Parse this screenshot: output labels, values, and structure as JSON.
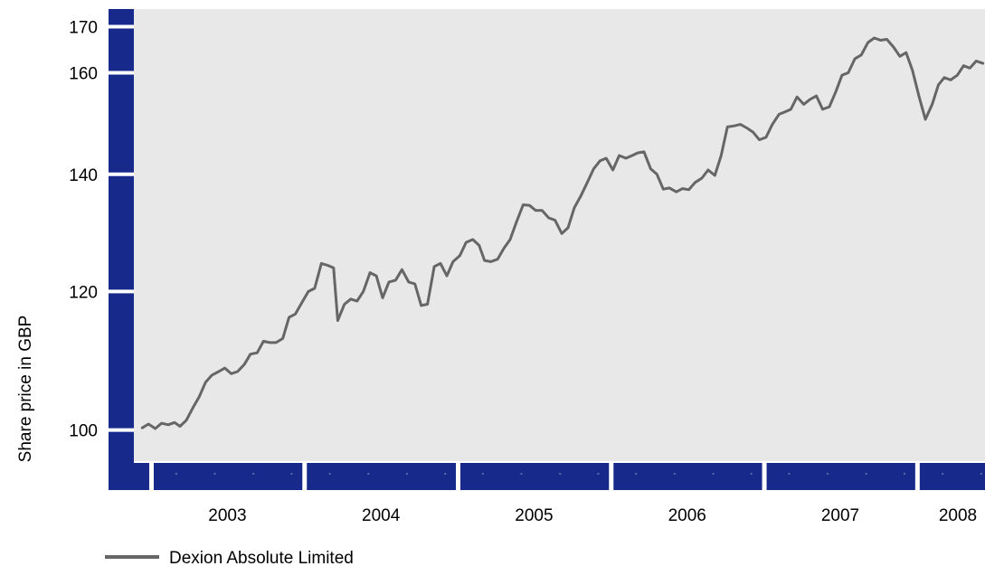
{
  "chart_data": {
    "type": "line",
    "title": "",
    "xlabel": "",
    "ylabel": "Share price in GBP",
    "scale": "log",
    "xlim": [
      "2002-11-20",
      "2008-06-10"
    ],
    "ylim": [
      96,
      174
    ],
    "x_ticks": [
      "2003",
      "2004",
      "2005",
      "2006",
      "2007",
      "2008"
    ],
    "y_ticks": [
      100,
      120,
      140,
      160,
      170
    ],
    "grid": false,
    "legend": "bottom-left",
    "colors": {
      "plot_background": "#e8e8e8",
      "axis": "#17298a",
      "line": "#666666"
    },
    "series": [
      {
        "name": "Dexion Absolute Limited",
        "color": "#666666",
        "points": [
          [
            "2002-12-10",
            100.3
          ],
          [
            "2002-12-25",
            100.8
          ],
          [
            "2003-01-10",
            100.2
          ],
          [
            "2003-01-25",
            100.9
          ],
          [
            "2003-02-10",
            100.7
          ],
          [
            "2003-02-25",
            101.0
          ],
          [
            "2003-03-10",
            100.5
          ],
          [
            "2003-03-25",
            101.3
          ],
          [
            "2003-04-10",
            103.0
          ],
          [
            "2003-04-25",
            104.5
          ],
          [
            "2003-05-10",
            106.5
          ],
          [
            "2003-05-25",
            107.5
          ],
          [
            "2003-06-10",
            108.0
          ],
          [
            "2003-06-25",
            108.5
          ],
          [
            "2003-07-10",
            107.7
          ],
          [
            "2003-07-25",
            108.0
          ],
          [
            "2003-08-10",
            109.0
          ],
          [
            "2003-08-25",
            110.5
          ],
          [
            "2003-09-10",
            110.7
          ],
          [
            "2003-09-25",
            112.4
          ],
          [
            "2003-10-10",
            112.2
          ],
          [
            "2003-10-25",
            112.2
          ],
          [
            "2003-11-10",
            112.8
          ],
          [
            "2003-11-25",
            116.0
          ],
          [
            "2003-12-10",
            116.5
          ],
          [
            "2003-12-25",
            118.2
          ],
          [
            "2004-01-10",
            120.0
          ],
          [
            "2004-01-25",
            120.5
          ],
          [
            "2004-02-10",
            124.5
          ],
          [
            "2004-02-25",
            124.2
          ],
          [
            "2004-03-10",
            123.8
          ],
          [
            "2004-03-20",
            115.5
          ],
          [
            "2004-04-05",
            118.0
          ],
          [
            "2004-04-20",
            118.8
          ],
          [
            "2004-05-05",
            118.5
          ],
          [
            "2004-05-20",
            120.0
          ],
          [
            "2004-06-05",
            123.0
          ],
          [
            "2004-06-20",
            122.5
          ],
          [
            "2004-07-05",
            119.0
          ],
          [
            "2004-07-20",
            121.5
          ],
          [
            "2004-08-05",
            121.8
          ],
          [
            "2004-08-20",
            123.5
          ],
          [
            "2004-09-05",
            121.5
          ],
          [
            "2004-09-20",
            121.2
          ],
          [
            "2004-10-05",
            117.8
          ],
          [
            "2004-10-20",
            118.0
          ],
          [
            "2004-11-05",
            124.0
          ],
          [
            "2004-11-20",
            124.5
          ],
          [
            "2004-12-05",
            122.5
          ],
          [
            "2004-12-20",
            124.8
          ],
          [
            "2005-01-05",
            125.8
          ],
          [
            "2005-01-20",
            128.0
          ],
          [
            "2005-02-05",
            128.5
          ],
          [
            "2005-02-20",
            127.5
          ],
          [
            "2005-03-05",
            125.0
          ],
          [
            "2005-03-20",
            124.8
          ],
          [
            "2005-04-05",
            125.2
          ],
          [
            "2005-04-20",
            127.0
          ],
          [
            "2005-05-05",
            128.5
          ],
          [
            "2005-05-20",
            131.5
          ],
          [
            "2005-06-05",
            134.5
          ],
          [
            "2005-06-20",
            134.4
          ],
          [
            "2005-07-05",
            133.5
          ],
          [
            "2005-07-20",
            133.5
          ],
          [
            "2005-08-05",
            132.2
          ],
          [
            "2005-08-20",
            131.8
          ],
          [
            "2005-09-05",
            129.5
          ],
          [
            "2005-09-20",
            130.5
          ],
          [
            "2005-10-05",
            134.0
          ],
          [
            "2005-10-20",
            136.0
          ],
          [
            "2005-11-05",
            138.5
          ],
          [
            "2005-11-20",
            141.0
          ],
          [
            "2005-12-05",
            142.5
          ],
          [
            "2005-12-20",
            143.0
          ],
          [
            "2006-01-05",
            140.8
          ],
          [
            "2006-01-20",
            143.5
          ],
          [
            "2006-02-05",
            143.0
          ],
          [
            "2006-02-20",
            143.5
          ],
          [
            "2006-03-05",
            144.0
          ],
          [
            "2006-03-20",
            144.2
          ],
          [
            "2006-04-05",
            141.0
          ],
          [
            "2006-04-20",
            140.0
          ],
          [
            "2006-05-05",
            137.3
          ],
          [
            "2006-05-20",
            137.5
          ],
          [
            "2006-06-05",
            136.8
          ],
          [
            "2006-06-20",
            137.4
          ],
          [
            "2006-07-05",
            137.2
          ],
          [
            "2006-07-20",
            138.5
          ],
          [
            "2006-08-05",
            139.3
          ],
          [
            "2006-08-20",
            140.8
          ],
          [
            "2006-09-05",
            139.8
          ],
          [
            "2006-09-20",
            143.5
          ],
          [
            "2006-10-05",
            149.0
          ],
          [
            "2006-10-20",
            149.2
          ],
          [
            "2006-11-05",
            149.5
          ],
          [
            "2006-11-20",
            148.8
          ],
          [
            "2006-12-05",
            148.0
          ],
          [
            "2006-12-20",
            146.5
          ],
          [
            "2007-01-05",
            147.0
          ],
          [
            "2007-01-20",
            149.5
          ],
          [
            "2007-02-05",
            151.5
          ],
          [
            "2007-02-20",
            152.0
          ],
          [
            "2007-03-05",
            152.5
          ],
          [
            "2007-03-20",
            155.0
          ],
          [
            "2007-04-05",
            153.5
          ],
          [
            "2007-04-20",
            154.5
          ],
          [
            "2007-05-05",
            155.2
          ],
          [
            "2007-05-20",
            152.5
          ],
          [
            "2007-06-05",
            153.0
          ],
          [
            "2007-06-20",
            156.0
          ],
          [
            "2007-07-05",
            159.5
          ],
          [
            "2007-07-20",
            160.0
          ],
          [
            "2007-08-05",
            163.0
          ],
          [
            "2007-08-20",
            163.8
          ],
          [
            "2007-09-05",
            166.5
          ],
          [
            "2007-09-20",
            167.5
          ],
          [
            "2007-10-05",
            167.0
          ],
          [
            "2007-10-20",
            167.2
          ],
          [
            "2007-11-05",
            165.5
          ],
          [
            "2007-11-20",
            163.5
          ],
          [
            "2007-12-05",
            164.3
          ],
          [
            "2007-12-20",
            160.5
          ],
          [
            "2008-01-05",
            155.0
          ],
          [
            "2008-01-20",
            150.5
          ],
          [
            "2008-02-05",
            153.5
          ],
          [
            "2008-02-20",
            157.5
          ],
          [
            "2008-03-05",
            159.0
          ],
          [
            "2008-03-20",
            158.5
          ],
          [
            "2008-04-05",
            159.5
          ],
          [
            "2008-04-20",
            161.5
          ],
          [
            "2008-05-05",
            161.0
          ],
          [
            "2008-05-20",
            162.5
          ],
          [
            "2008-06-05",
            162.0
          ]
        ]
      }
    ]
  }
}
